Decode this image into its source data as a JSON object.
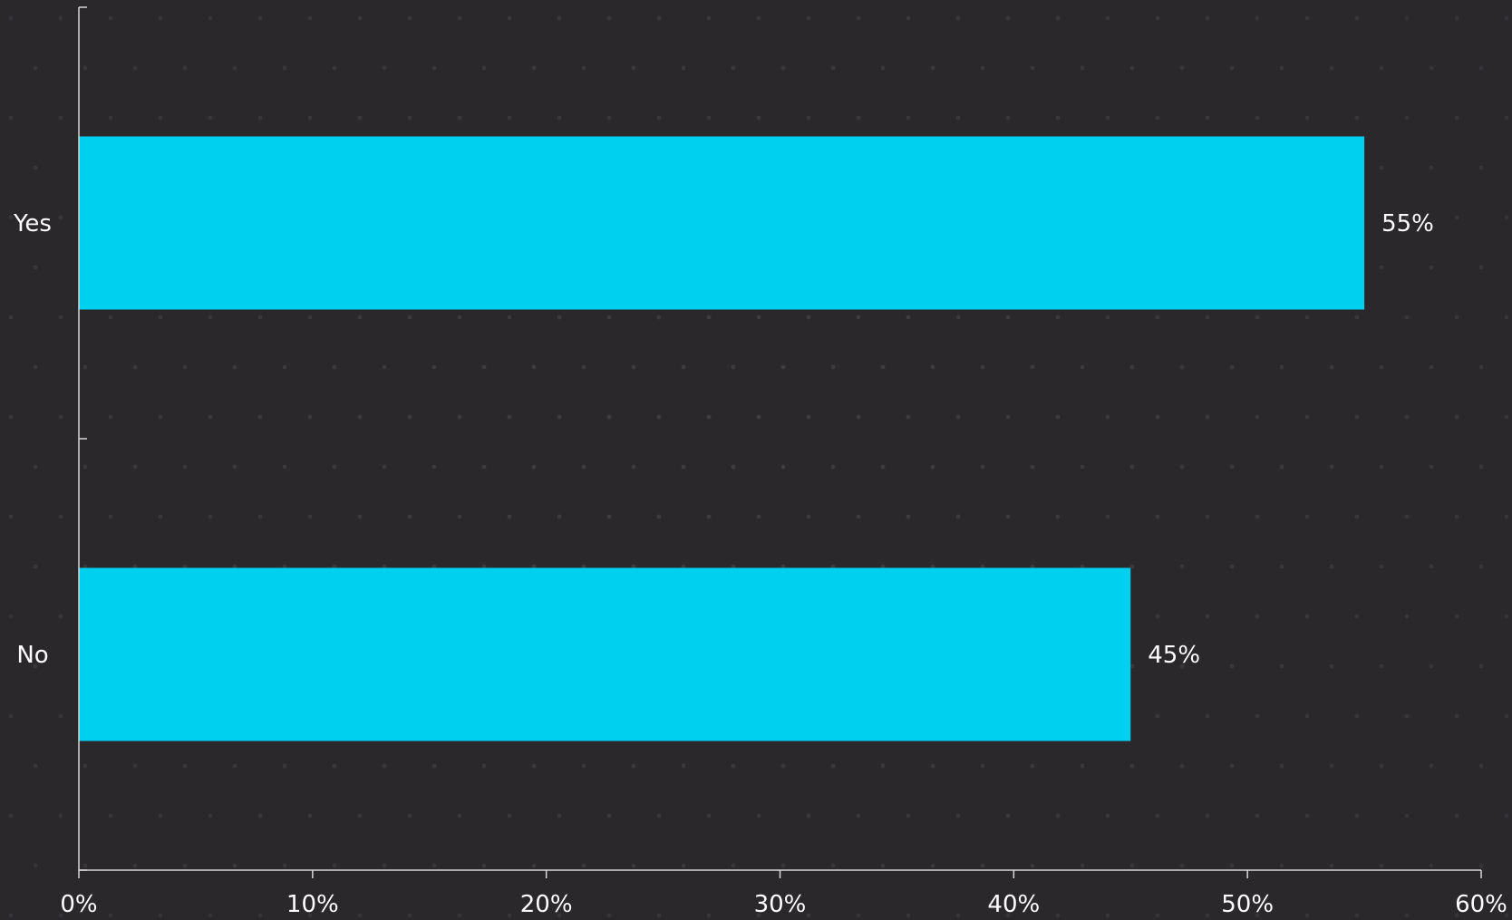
{
  "chart_data": {
    "type": "bar",
    "orientation": "horizontal",
    "categories": [
      "Yes",
      "No"
    ],
    "values": [
      55,
      45
    ],
    "value_labels": [
      "55%",
      "45%"
    ],
    "xlim": [
      0,
      60
    ],
    "x_ticks": [
      0,
      10,
      20,
      30,
      40,
      50,
      60
    ],
    "x_tick_labels": [
      "0%",
      "10%",
      "20%",
      "30%",
      "40%",
      "50%",
      "60%"
    ],
    "title": "",
    "xlabel": "",
    "ylabel": "",
    "grid": false,
    "legend": "none",
    "colors": {
      "bar": "#00d0f0",
      "background": "#2b282c",
      "text": "#ffffff",
      "axis": "#d8d8d8"
    }
  }
}
